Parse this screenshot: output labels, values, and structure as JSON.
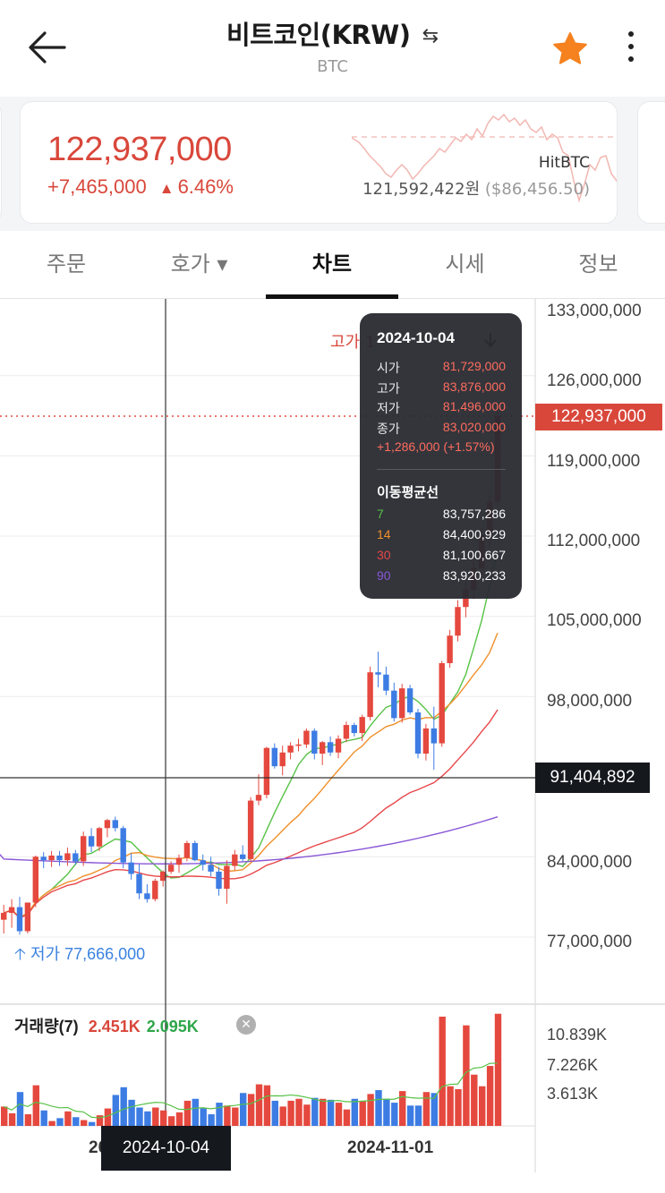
{
  "header": {
    "title": "비트코인(KRW)",
    "subtitle": "BTC",
    "swap_icon": "swap-arrows-icon",
    "back_icon": "arrow-left-icon",
    "favorite_icon": "star-icon",
    "more_icon": "more-vertical-icon",
    "favorite_color": "#f5811f"
  },
  "ticker": {
    "price": "122,937,000",
    "change_amount": "+7,465,000",
    "change_arrow": "▲",
    "change_percent": "6.46%",
    "exchange": "HitBTC",
    "ref_price": "121,592,422원",
    "ref_price_usd": "($86,456.50)",
    "up_color": "#d9473b"
  },
  "tabs": [
    {
      "label": "주문",
      "active": false
    },
    {
      "label": "호가 ▾",
      "active": false
    },
    {
      "label": "차트",
      "active": true
    },
    {
      "label": "시세",
      "active": false
    },
    {
      "label": "정보",
      "active": false
    }
  ],
  "chart": {
    "price_axis": [
      "133,000,000",
      "126,000,000",
      "119,000,000",
      "112,000,000",
      "105,000,000",
      "98,000,000",
      "84,000,000",
      "77,000,000"
    ],
    "current_price_tag": "122,937,000",
    "crosshair_price_tag": "91,404,892",
    "high_label": "고가 1",
    "low_label": "저가 77,666,000",
    "volume_title": "거래량(7)",
    "volume_value_a": "2.451K",
    "volume_value_b": "2.095K",
    "volume_axis": [
      "10.839K",
      "7.226K",
      "3.613K"
    ],
    "date_labels": [
      "20",
      "2024-11-01"
    ],
    "crosshair_date_tag": "2024-10-04"
  },
  "tooltip": {
    "date": "2024-10-04",
    "rows": [
      {
        "label": "시가",
        "value": "81,729,000"
      },
      {
        "label": "고가",
        "value": "83,876,000"
      },
      {
        "label": "저가",
        "value": "81,496,000"
      },
      {
        "label": "종가",
        "value": "83,020,000"
      }
    ],
    "change": "+1,286,000 (+1.57%)",
    "ma_title": "이동평균선",
    "ma": [
      {
        "period": "7",
        "value": "83,757,286",
        "color": "#58c247"
      },
      {
        "period": "14",
        "value": "84,400,929",
        "color": "#f0902b"
      },
      {
        "period": "30",
        "value": "81,100,667",
        "color": "#e8474a"
      },
      {
        "period": "90",
        "value": "83,920,233",
        "color": "#8a57d6"
      }
    ]
  },
  "chart_data": {
    "type": "candlestick",
    "unit": "KRW",
    "ylim": [
      73000000,
      134000000
    ],
    "candles": [
      [
        78.9,
        80.2,
        77.7,
        79.5
      ],
      [
        79.5,
        80.7,
        78.2,
        80.0
      ],
      [
        80.0,
        80.9,
        77.6,
        77.9
      ],
      [
        77.9,
        80.4,
        77.7,
        80.4
      ],
      [
        80.4,
        84.5,
        80.0,
        84.4
      ],
      [
        84.4,
        84.8,
        83.4,
        84.1
      ],
      [
        84.1,
        84.9,
        83.5,
        84.5
      ],
      [
        84.5,
        84.9,
        83.6,
        84.1
      ],
      [
        84.1,
        85.2,
        83.6,
        84.7
      ],
      [
        84.7,
        85.0,
        83.7,
        84.0
      ],
      [
        84.0,
        86.6,
        83.6,
        86.2
      ],
      [
        86.2,
        86.9,
        84.8,
        85.3
      ],
      [
        85.3,
        87.0,
        84.9,
        86.9
      ],
      [
        86.9,
        87.7,
        86.1,
        87.6
      ],
      [
        87.6,
        87.9,
        86.6,
        86.9
      ],
      [
        86.9,
        87.1,
        83.4,
        83.9
      ],
      [
        83.9,
        84.7,
        82.4,
        82.9
      ],
      [
        82.9,
        83.8,
        80.7,
        81.2
      ],
      [
        81.2,
        82.0,
        80.4,
        80.7
      ],
      [
        80.7,
        82.5,
        80.5,
        82.3
      ],
      [
        82.3,
        83.2,
        81.8,
        83.1
      ],
      [
        83.1,
        84.0,
        82.9,
        83.7
      ],
      [
        83.7,
        84.6,
        83.0,
        84.3
      ],
      [
        84.3,
        85.8,
        84.0,
        85.6
      ],
      [
        85.6,
        85.8,
        84.0,
        84.1
      ],
      [
        84.1,
        84.6,
        83.2,
        83.7
      ],
      [
        83.7,
        84.4,
        82.7,
        83.1
      ],
      [
        83.1,
        83.5,
        81.0,
        81.6
      ],
      [
        81.6,
        84.1,
        80.3,
        83.6
      ],
      [
        83.6,
        85.0,
        83.2,
        84.6
      ],
      [
        84.6,
        85.4,
        84.0,
        84.2
      ],
      [
        84.2,
        89.6,
        84.0,
        89.3
      ],
      [
        89.3,
        91.6,
        88.9,
        89.8
      ],
      [
        89.8,
        94.0,
        89.5,
        93.9
      ],
      [
        93.9,
        94.3,
        92.1,
        92.3
      ],
      [
        92.3,
        94.1,
        91.5,
        93.5
      ],
      [
        93.5,
        94.4,
        92.9,
        94.1
      ],
      [
        94.1,
        94.7,
        93.6,
        94.2
      ],
      [
        94.2,
        95.6,
        93.9,
        95.4
      ],
      [
        95.4,
        95.6,
        92.9,
        93.4
      ],
      [
        93.4,
        94.5,
        92.4,
        94.4
      ],
      [
        94.4,
        94.9,
        93.2,
        93.5
      ],
      [
        93.5,
        95.0,
        93.0,
        94.7
      ],
      [
        94.7,
        96.2,
        94.4,
        95.9
      ],
      [
        95.9,
        96.1,
        94.9,
        95.2
      ],
      [
        95.2,
        96.8,
        94.5,
        96.6
      ],
      [
        96.6,
        101.0,
        96.3,
        100.5
      ],
      [
        100.5,
        102.3,
        99.2,
        100.3
      ],
      [
        100.3,
        101.0,
        98.5,
        98.9
      ],
      [
        98.9,
        99.6,
        96.2,
        96.5
      ],
      [
        96.5,
        99.5,
        96.1,
        99.1
      ],
      [
        99.1,
        99.4,
        96.8,
        97.0
      ],
      [
        97.0,
        97.3,
        93.0,
        93.4
      ],
      [
        93.4,
        96.0,
        92.8,
        95.6
      ],
      [
        95.6,
        97.5,
        92.0,
        94.3
      ],
      [
        94.3,
        101.5,
        94.0,
        101.3
      ],
      [
        101.3,
        104.2,
        100.9,
        103.7
      ],
      [
        103.7,
        106.8,
        103.2,
        106.2
      ],
      [
        106.2,
        108.6,
        105.3,
        107.7
      ],
      [
        107.7,
        110.5,
        106.9,
        109.6
      ],
      [
        109.6,
        113.2,
        109.0,
        112.5
      ],
      [
        112.5,
        116.0,
        111.4,
        115.4
      ],
      [
        115.4,
        123.5,
        115.0,
        122.9
      ]
    ],
    "ma_series": [
      {
        "name": "7",
        "color": "#58c247"
      },
      {
        "name": "14",
        "color": "#f0902b"
      },
      {
        "name": "30",
        "color": "#e8474a"
      },
      {
        "name": "90",
        "color": "#8a57d6"
      }
    ],
    "volume_ylim": [
      0,
      11.5
    ],
    "volume": [
      2.0,
      1.3,
      3.5,
      1.2,
      4.2,
      1.6,
      0.5,
      0.8,
      1.5,
      0.9,
      0.6,
      0.4,
      1.1,
      1.8,
      3.2,
      4.0,
      2.7,
      1.9,
      1.5,
      1.9,
      1.6,
      1.0,
      1.4,
      2.6,
      2.8,
      1.8,
      1.2,
      2.4,
      2.1,
      1.9,
      3.4,
      3.3,
      4.3,
      4.2,
      2.6,
      2.0,
      2.6,
      2.8,
      2.2,
      2.9,
      2.8,
      2.7,
      2.4,
      1.7,
      2.8,
      2.6,
      3.3,
      3.7,
      2.8,
      2.4,
      3.6,
      2.1,
      2.1,
      3.5,
      3.4,
      11.3,
      4.1,
      3.8,
      10.4,
      5.3,
      4.1,
      6.2,
      11.6
    ]
  }
}
